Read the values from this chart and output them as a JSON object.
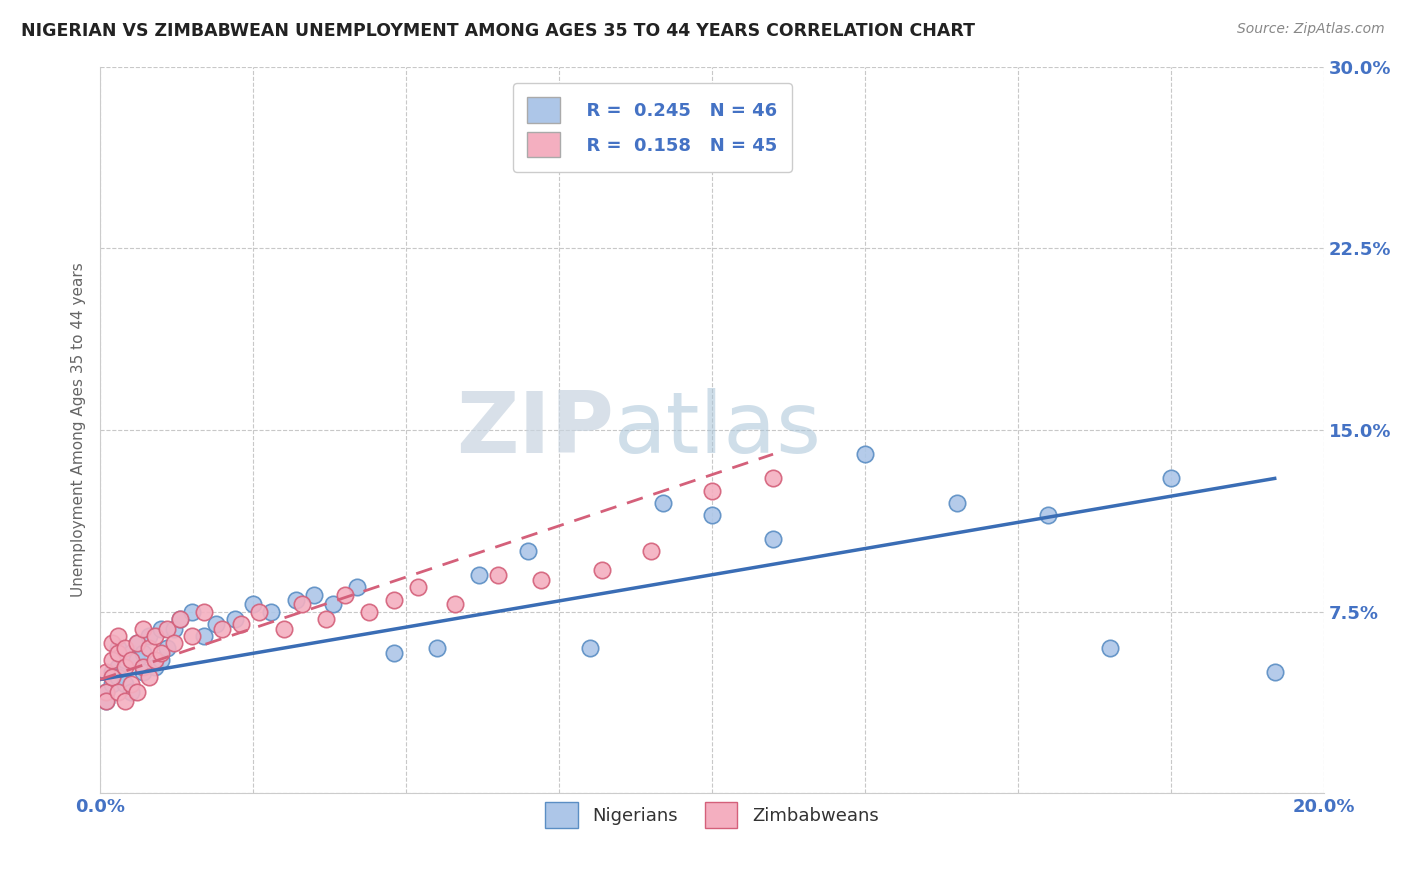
{
  "title": "NIGERIAN VS ZIMBABWEAN UNEMPLOYMENT AMONG AGES 35 TO 44 YEARS CORRELATION CHART",
  "source": "Source: ZipAtlas.com",
  "ylabel": "Unemployment Among Ages 35 to 44 years",
  "xlim": [
    0.0,
    0.2
  ],
  "ylim": [
    0.0,
    0.3
  ],
  "xticks": [
    0.0,
    0.025,
    0.05,
    0.075,
    0.1,
    0.125,
    0.15,
    0.175,
    0.2
  ],
  "xtick_labels": [
    "0.0%",
    "",
    "",
    "",
    "",
    "",
    "",
    "",
    "20.0%"
  ],
  "yticks": [
    0.0,
    0.075,
    0.15,
    0.225,
    0.3
  ],
  "ytick_labels": [
    "",
    "7.5%",
    "15.0%",
    "22.5%",
    "30.0%"
  ],
  "legend_R_nigerian": "0.245",
  "legend_N_nigerian": "46",
  "legend_R_zimbabwean": "0.158",
  "legend_N_zimbabwean": "45",
  "nigerian_color": "#adc6e8",
  "zimbabwean_color": "#f4afc0",
  "nigerian_edge_color": "#5b8ec4",
  "zimbabwean_edge_color": "#d4607a",
  "nigerian_line_color": "#3a6db5",
  "zimbabwean_line_color": "#d4607a",
  "background_color": "#ffffff",
  "grid_color": "#c8c8c8",
  "nigerian_x": [
    0.001,
    0.001,
    0.002,
    0.002,
    0.003,
    0.003,
    0.003,
    0.004,
    0.004,
    0.005,
    0.005,
    0.006,
    0.006,
    0.007,
    0.007,
    0.008,
    0.009,
    0.01,
    0.01,
    0.011,
    0.012,
    0.013,
    0.015,
    0.017,
    0.019,
    0.022,
    0.025,
    0.028,
    0.032,
    0.035,
    0.038,
    0.042,
    0.048,
    0.055,
    0.062,
    0.07,
    0.08,
    0.092,
    0.1,
    0.11,
    0.125,
    0.14,
    0.155,
    0.165,
    0.175,
    0.192
  ],
  "nigerian_y": [
    0.042,
    0.038,
    0.05,
    0.045,
    0.052,
    0.048,
    0.06,
    0.045,
    0.055,
    0.042,
    0.058,
    0.055,
    0.062,
    0.05,
    0.058,
    0.065,
    0.052,
    0.068,
    0.055,
    0.06,
    0.068,
    0.072,
    0.075,
    0.065,
    0.07,
    0.072,
    0.078,
    0.075,
    0.08,
    0.082,
    0.078,
    0.085,
    0.058,
    0.06,
    0.09,
    0.1,
    0.06,
    0.12,
    0.115,
    0.105,
    0.14,
    0.12,
    0.115,
    0.06,
    0.13,
    0.05
  ],
  "zimbabwean_x": [
    0.001,
    0.001,
    0.001,
    0.002,
    0.002,
    0.002,
    0.003,
    0.003,
    0.003,
    0.004,
    0.004,
    0.004,
    0.005,
    0.005,
    0.006,
    0.006,
    0.007,
    0.007,
    0.008,
    0.008,
    0.009,
    0.009,
    0.01,
    0.011,
    0.012,
    0.013,
    0.015,
    0.017,
    0.02,
    0.023,
    0.026,
    0.03,
    0.033,
    0.037,
    0.04,
    0.044,
    0.048,
    0.052,
    0.058,
    0.065,
    0.072,
    0.082,
    0.09,
    0.1,
    0.11
  ],
  "zimbabwean_y": [
    0.042,
    0.05,
    0.038,
    0.055,
    0.062,
    0.048,
    0.058,
    0.065,
    0.042,
    0.052,
    0.06,
    0.038,
    0.055,
    0.045,
    0.062,
    0.042,
    0.068,
    0.052,
    0.06,
    0.048,
    0.055,
    0.065,
    0.058,
    0.068,
    0.062,
    0.072,
    0.065,
    0.075,
    0.068,
    0.07,
    0.075,
    0.068,
    0.078,
    0.072,
    0.082,
    0.075,
    0.08,
    0.085,
    0.078,
    0.09,
    0.088,
    0.092,
    0.1,
    0.125,
    0.13
  ],
  "nig_line_x0": 0.0,
  "nig_line_y0": 0.047,
  "nig_line_x1": 0.192,
  "nig_line_y1": 0.13,
  "zim_line_x0": 0.0,
  "zim_line_y0": 0.047,
  "zim_line_x1": 0.11,
  "zim_line_y1": 0.14
}
